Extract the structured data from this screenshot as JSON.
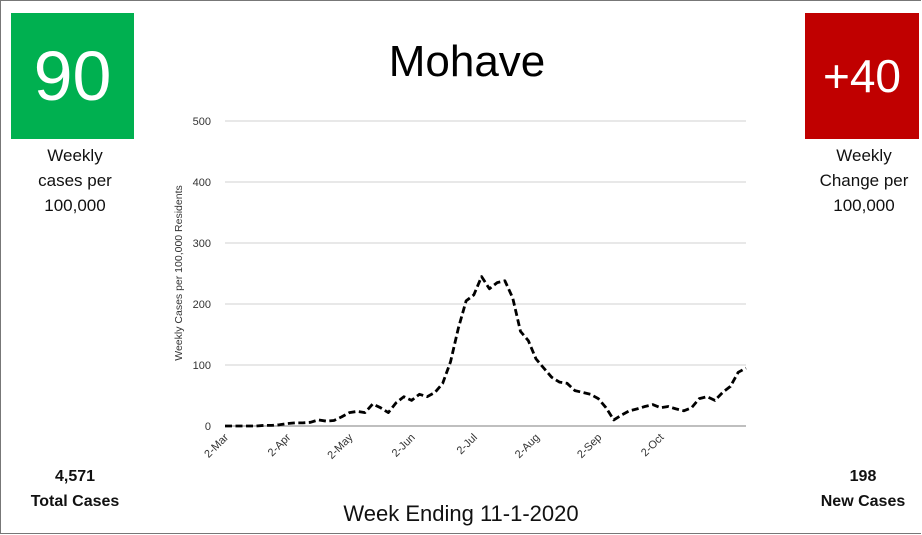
{
  "panels": {
    "weekly_cases": {
      "value": 90,
      "label": "Weekly cases per 100,000",
      "color": "#00b050"
    },
    "weekly_change": {
      "value": "+40",
      "label": "Weekly Change per 100,000",
      "color": "#c00000"
    },
    "total_cases": {
      "value": "4,571",
      "label": "Total Cases"
    },
    "new_cases": {
      "value": 198,
      "label": "New Cases"
    }
  },
  "chart_data": {
    "type": "line",
    "title": "Mohave",
    "xlabel": "Week Ending 11-1-2020",
    "ylabel": "Weekly Cases per 100,000 Residents",
    "categories": [
      "2-Mar",
      null,
      null,
      null,
      null,
      null,
      null,
      null,
      "2-Apr",
      null,
      null,
      null,
      null,
      null,
      null,
      null,
      "2-May",
      null,
      null,
      null,
      null,
      null,
      null,
      null,
      "2-Jun",
      null,
      null,
      null,
      null,
      null,
      null,
      null,
      "2-Jul",
      null,
      null,
      null,
      null,
      null,
      null,
      null,
      "2-Aug",
      null,
      null,
      null,
      null,
      null,
      null,
      null,
      "2-Sep",
      null,
      null,
      null,
      null,
      null,
      null,
      null,
      "2-Oct",
      null,
      null,
      null,
      null,
      null,
      null,
      null,
      null,
      null,
      null,
      null
    ],
    "series": [
      {
        "color": "#000000",
        "values": [
          0,
          0,
          0,
          0,
          0,
          1,
          1,
          2,
          4,
          5,
          5,
          6,
          10,
          8,
          9,
          15,
          22,
          24,
          22,
          36,
          30,
          22,
          38,
          48,
          42,
          52,
          48,
          55,
          70,
          105,
          160,
          205,
          215,
          245,
          225,
          235,
          238,
          210,
          155,
          140,
          110,
          95,
          80,
          72,
          70,
          58,
          55,
          52,
          45,
          30,
          10,
          18,
          25,
          28,
          32,
          35,
          30,
          32,
          28,
          25,
          30,
          45,
          48,
          42,
          55,
          65,
          88,
          95
        ]
      }
    ],
    "ylim": [
      0,
      500
    ],
    "yticks": [
      0,
      100,
      200,
      300,
      400,
      500
    ],
    "grid": true
  }
}
